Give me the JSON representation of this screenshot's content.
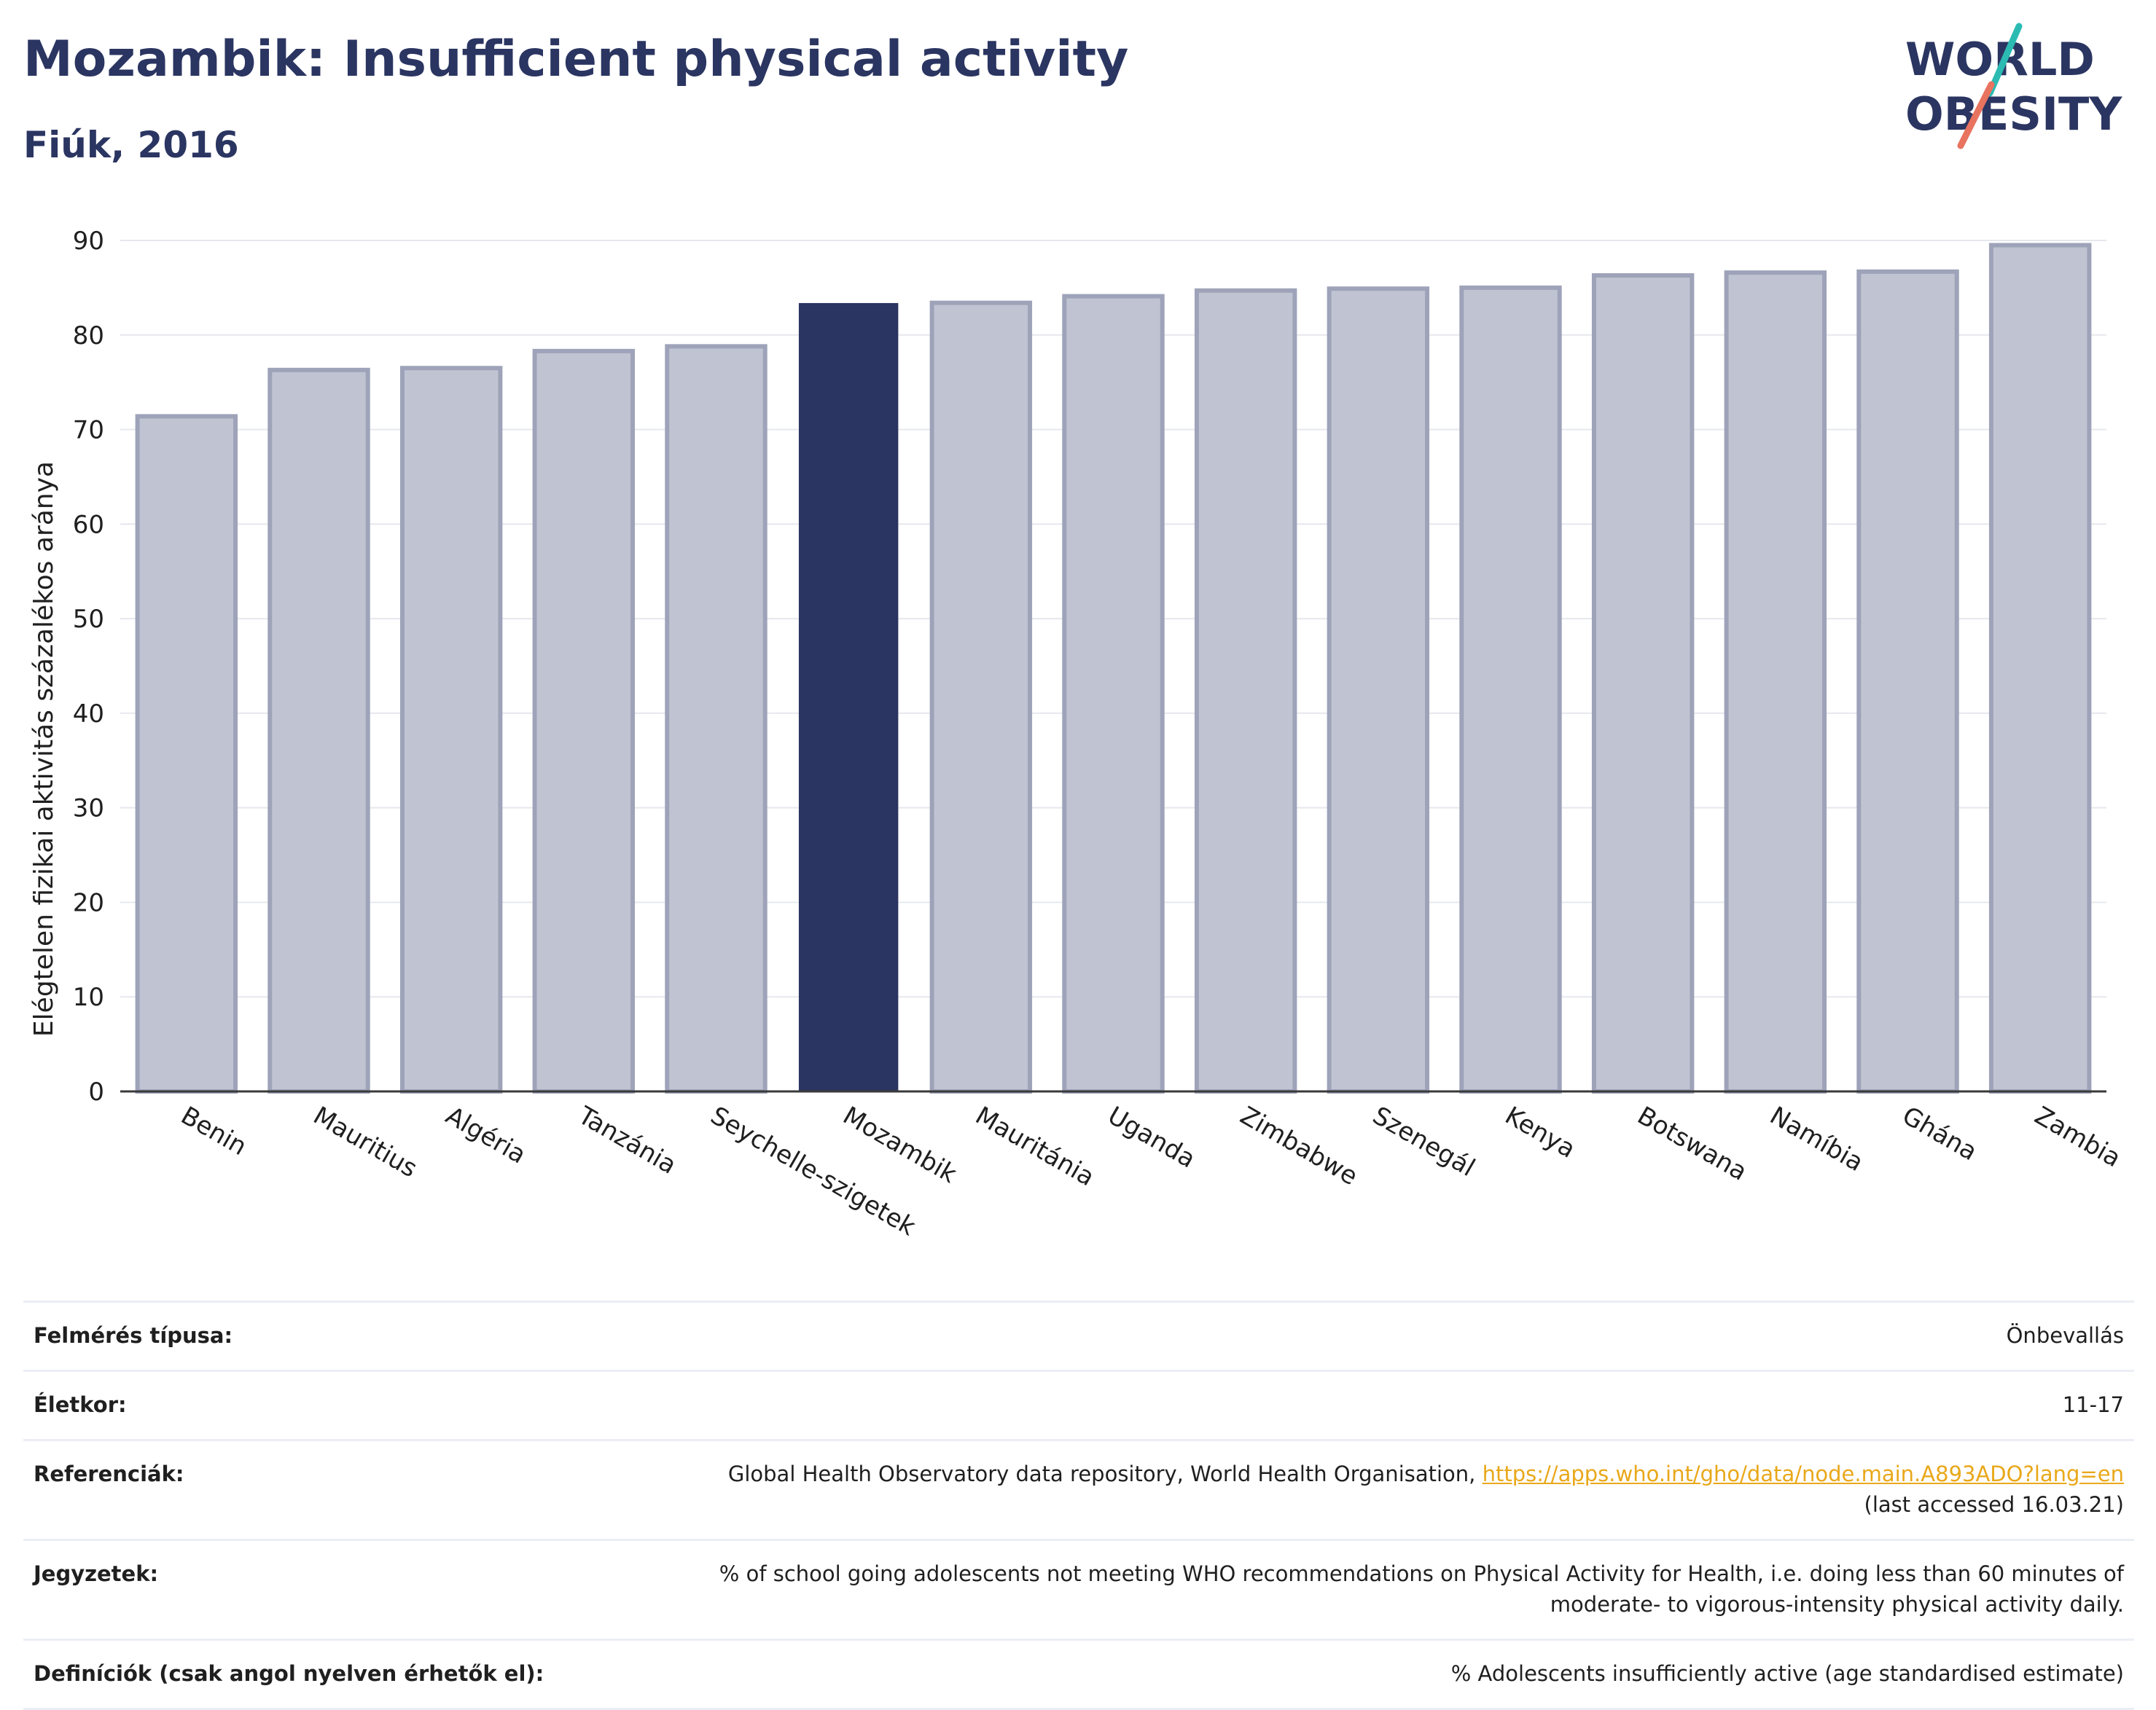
{
  "header": {
    "title": "Mozambik: Insufficient physical activity",
    "subtitle": "Fiúk, 2016"
  },
  "logo": {
    "line1": "WORLD",
    "line2": "OBESITY",
    "text_color": "#2b3561",
    "accent_colors": [
      "#2bbbb2",
      "#e8735f"
    ]
  },
  "chart_data": {
    "type": "bar",
    "title": "",
    "xlabel": "",
    "ylabel": "Elégtelen fizikai aktivitás százalékos aránya",
    "categories": [
      "Benin",
      "Mauritius",
      "Algéria",
      "Tanzánia",
      "Seychelle-szigetek",
      "Mozambik",
      "Mauritánia",
      "Uganda",
      "Zimbabwe",
      "Szenegál",
      "Kenya",
      "Botswana",
      "Namíbia",
      "Ghána",
      "Zambia"
    ],
    "values": [
      71.4,
      76.3,
      76.5,
      78.3,
      78.8,
      83.3,
      83.4,
      84.1,
      84.7,
      84.9,
      85.0,
      86.3,
      86.6,
      86.7,
      89.5
    ],
    "highlight": "Mozambik",
    "ylim": [
      0,
      90
    ],
    "yticks": [
      0,
      10,
      20,
      30,
      40,
      50,
      60,
      70,
      80,
      90
    ],
    "grid": true,
    "colors": {
      "bar": "#c0c4d2",
      "bar_edge": "#9ea3b9",
      "highlight": "#2b3561"
    }
  },
  "info": {
    "survey_label": "Felmérés típusa:",
    "survey_value": "Önbevallás",
    "age_label": "Életkor:",
    "age_value": "11-17",
    "ref_label": "Referenciák:",
    "ref_text": "Global Health Observatory data repository, World Health Organisation, ",
    "ref_link": "https://apps.who.int/gho/data/node.main.A893ADO?lang=en",
    "ref_accessed": "(last accessed 16.03.21)",
    "notes_label": "Jegyzetek:",
    "notes_line1": "% of school going adolescents not meeting WHO recommendations on Physical Activity for Health, i.e. doing less than 60 minutes of",
    "notes_line2": "moderate- to vigorous-intensity physical activity daily.",
    "def_label": "Definíciók (csak angol nyelven érhetők el):",
    "def_value": "% Adolescents insufficiently active (age standardised estimate)"
  }
}
